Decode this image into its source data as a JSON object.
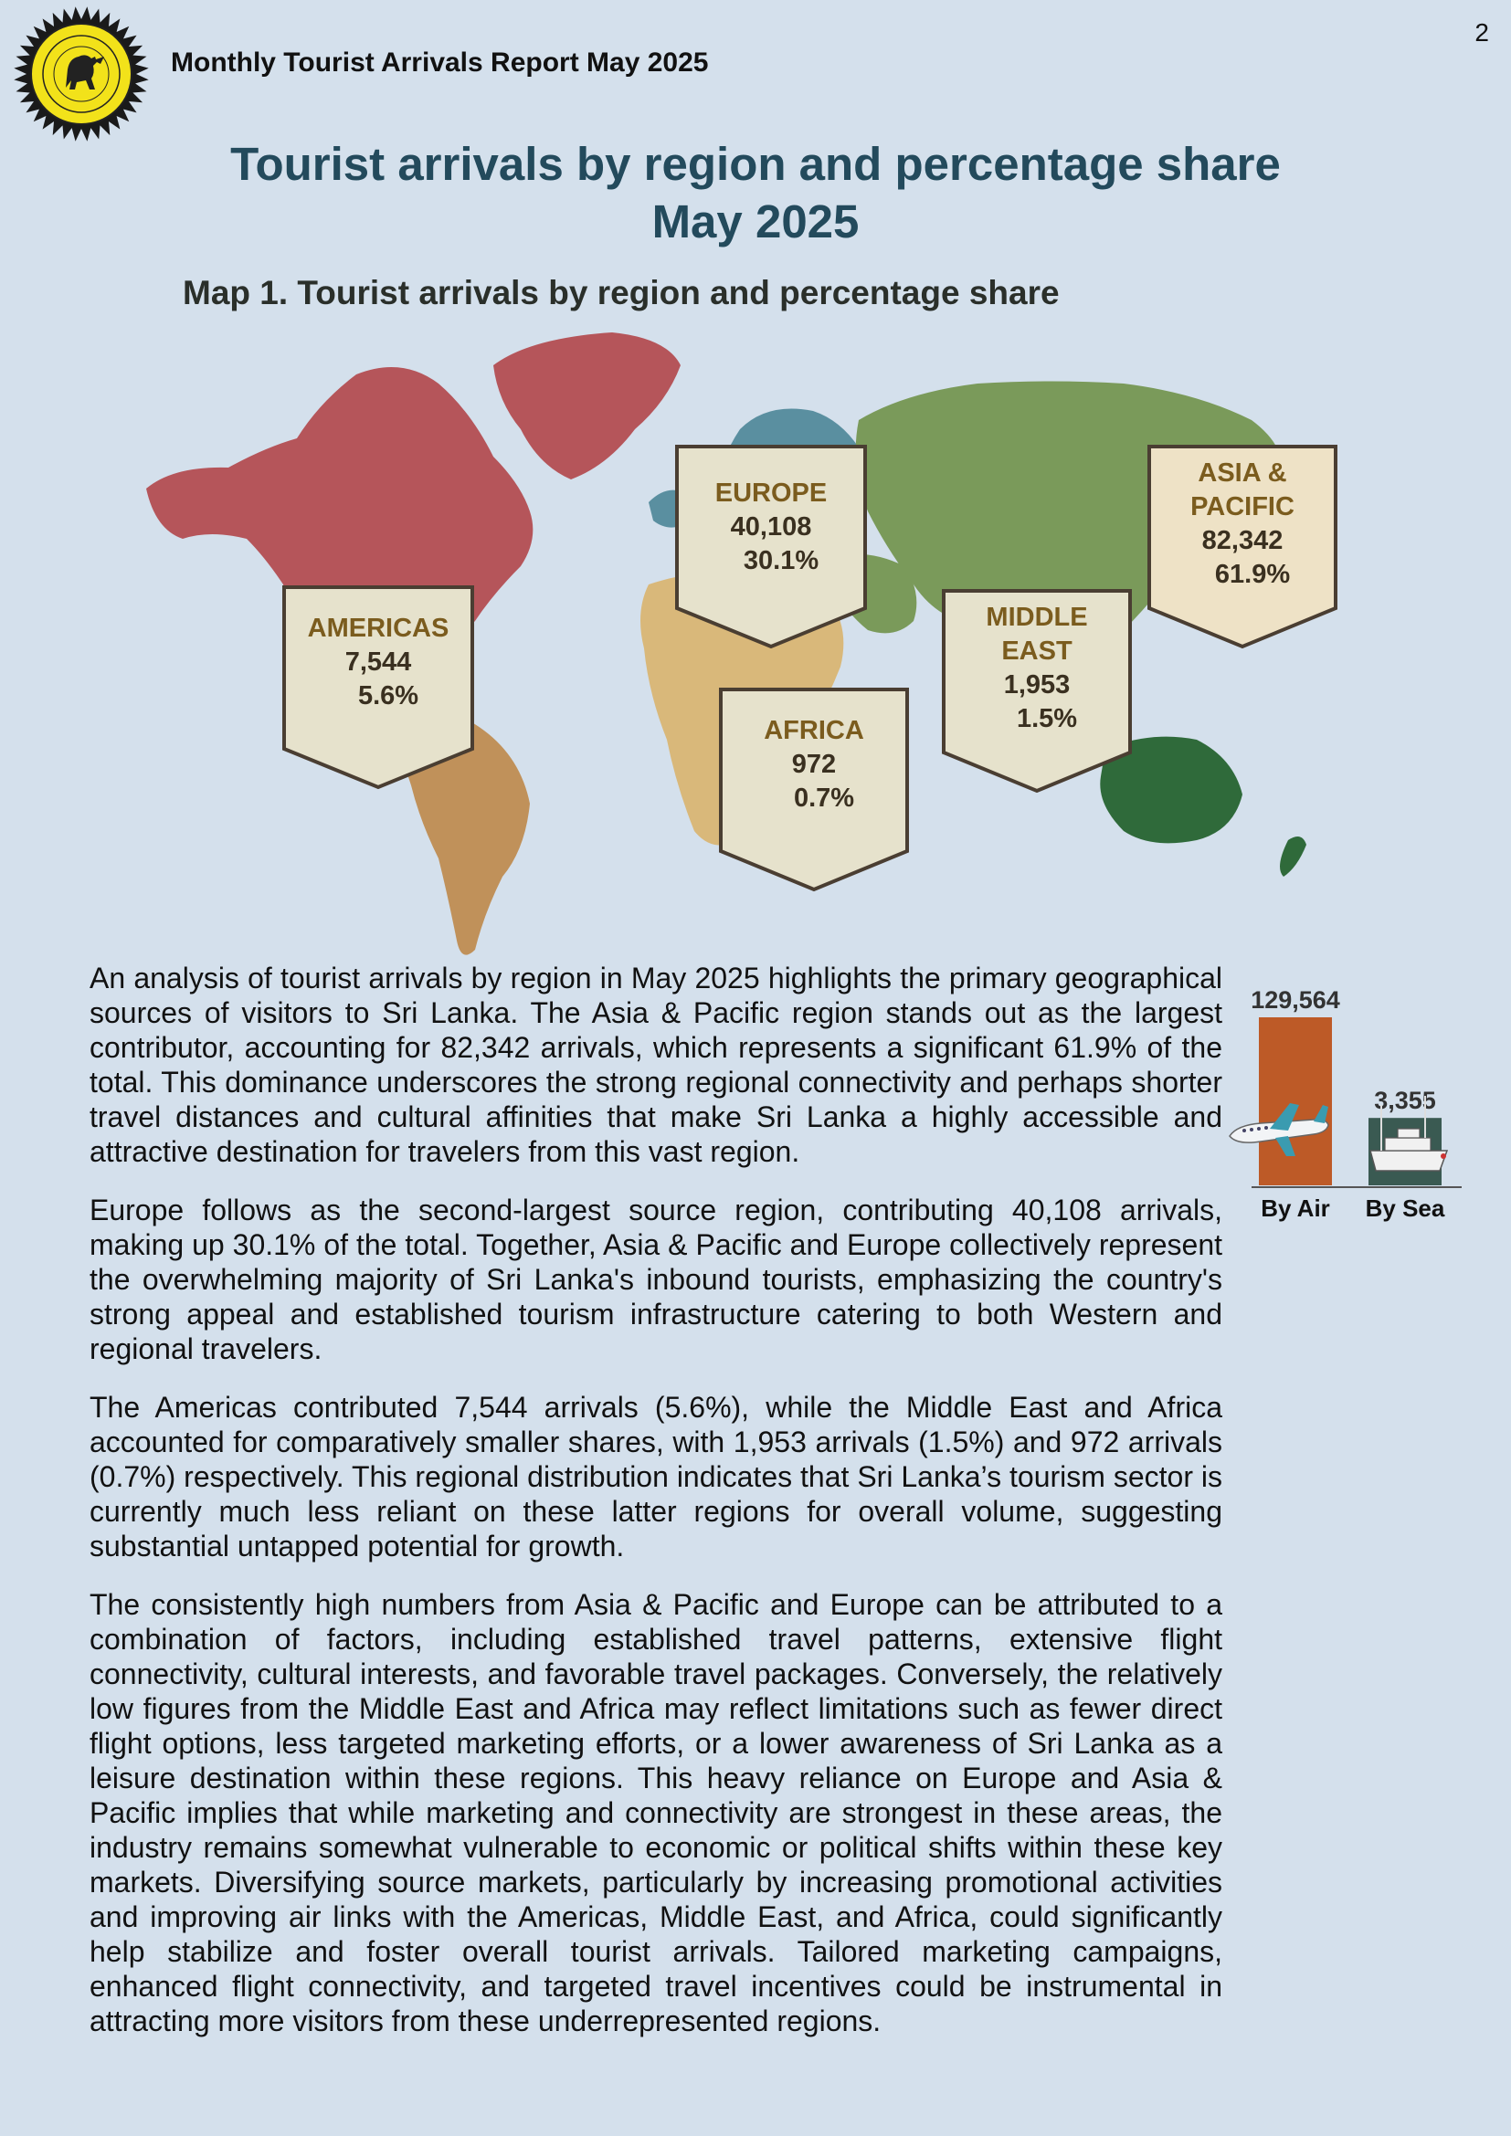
{
  "page_number": "2",
  "report_title": "Monthly Tourist Arrivals Report May 2025",
  "main_title": {
    "line1": "Tourist arrivals by region and percentage share",
    "line2": "May 2025"
  },
  "map_title": "Map 1. Tourist arrivals by region and percentage share",
  "regions": [
    {
      "name_lines": [
        "AMERICAS"
      ],
      "arrivals": "7,544",
      "share": "5.6%"
    },
    {
      "name_lines": [
        "EUROPE"
      ],
      "arrivals": "40,108",
      "share": "30.1%"
    },
    {
      "name_lines": [
        "AFRICA"
      ],
      "arrivals": "972",
      "share": "0.7%"
    },
    {
      "name_lines": [
        "MIDDLE",
        "EAST"
      ],
      "arrivals": "1,953",
      "share": "1.5%"
    },
    {
      "name_lines": [
        "ASIA &",
        "PACIFIC"
      ],
      "arrivals": "82,342",
      "share": "61.9%"
    }
  ],
  "colors": {
    "background": "#d4e0ec",
    "title": "#234a5c",
    "americas": "#b5555a",
    "south_america": "#c0915a",
    "europe": "#5a8fa0",
    "africa": "#d9b87a",
    "asia": "#7a9a5a",
    "oceania": "#2f6a3a",
    "air_bar": "#bd5a27",
    "sea_bar": "#3a5a52",
    "callout_fill": "#e6e2cc",
    "callout_fill_asia": "#eee2c6"
  },
  "paragraphs": [
    "An analysis of tourist arrivals by region in May 2025 highlights the primary geographical sources of visitors to Sri Lanka. The Asia & Pacific region stands out as the largest contributor, accounting for 82,342 arrivals, which represents a significant 61.9% of the total. This dominance underscores the strong regional connectivity and perhaps shorter travel distances and cultural affinities that make Sri Lanka a highly accessible and attractive destination for travelers from this vast region.",
    "Europe follows as the second-largest source region, contributing 40,108 arrivals, making up 30.1% of the total. Together, Asia & Pacific and Europe collectively represent the overwhelming majority of Sri Lanka's inbound tourists, emphasizing the country's strong appeal and established tourism infrastructure catering to both Western and regional travelers.",
    "The Americas contributed 7,544 arrivals (5.6%), while the Middle East and Africa accounted for comparatively smaller shares, with 1,953 arrivals (1.5%) and 972 arrivals (0.7%) respectively. This regional distribution indicates that Sri Lanka’s tourism sector is currently much less reliant on these latter regions for overall volume, suggesting substantial untapped potential for growth.",
    "The consistently high numbers from Asia & Pacific and Europe can be attributed to a combination of factors, including established travel patterns, extensive flight connectivity, cultural interests, and favorable travel packages. Conversely, the relatively low figures from the Middle East and Africa may reflect limitations such as fewer direct flight options, less targeted marketing efforts, or a lower awareness of Sri Lanka as a leisure destination within these regions. This heavy reliance on Europe and Asia & Pacific implies that while marketing and connectivity are strongest in these areas, the industry remains somewhat vulnerable to economic or political shifts within these key markets. Diversifying source markets, particularly by increasing promotional activities and improving air links with the Americas, Middle East, and Africa, could significantly help stabilize and foster overall tourist arrivals. Tailored marketing campaigns, enhanced flight connectivity, and targeted travel incentives could be instrumental in attracting more visitors from these underrepresented regions."
  ],
  "chart_data": {
    "type": "bar",
    "categories": [
      "By Air",
      "By Sea"
    ],
    "values": [
      129564,
      3355
    ],
    "value_labels": [
      "129,564",
      "3,355"
    ],
    "title": "",
    "xlabel": "",
    "ylabel": "",
    "icons": [
      "airplane-icon",
      "ship-icon"
    ]
  }
}
